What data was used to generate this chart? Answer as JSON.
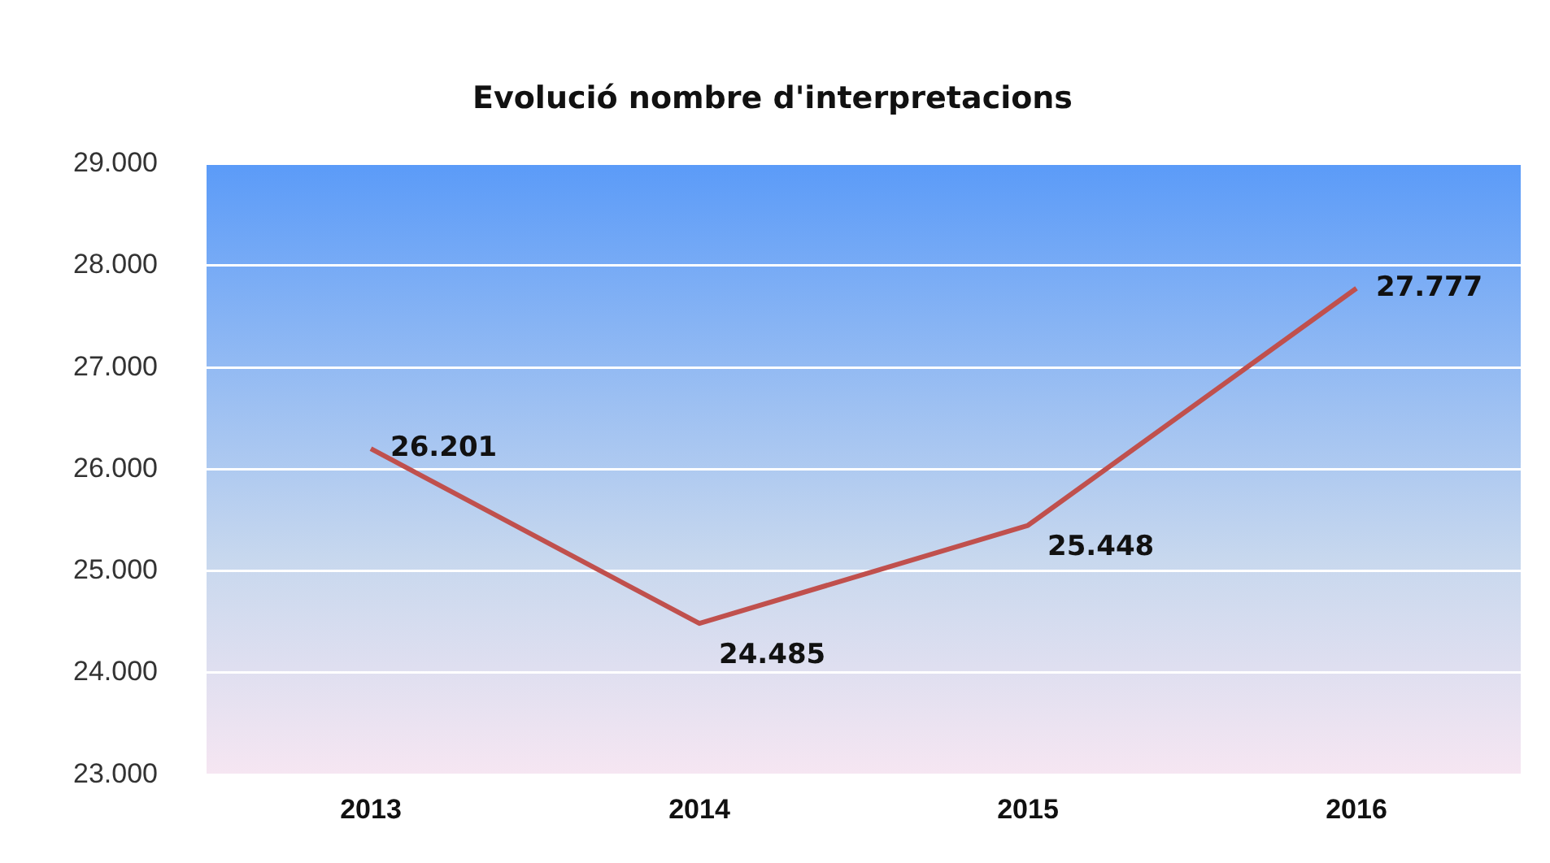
{
  "chart_data": {
    "type": "line",
    "title": "Evolució nombre d'interpretacions",
    "categories": [
      "2013",
      "2014",
      "2015",
      "2016"
    ],
    "series": [
      {
        "color": "#c0504d",
        "values": [
          26201,
          24485,
          25448,
          27777
        ],
        "value_labels": [
          "26.201",
          "24.485",
          "25.448",
          "27.777"
        ]
      }
    ],
    "ylim": [
      23000,
      29000
    ],
    "yticks": [
      {
        "value": 23000,
        "label": "23.000"
      },
      {
        "value": 24000,
        "label": "24.000"
      },
      {
        "value": 25000,
        "label": "25.000"
      },
      {
        "value": 26000,
        "label": "26.000"
      },
      {
        "value": 27000,
        "label": "27.000"
      },
      {
        "value": 28000,
        "label": "28.000"
      },
      {
        "value": 29000,
        "label": "29.000"
      }
    ],
    "grid": "y",
    "legend": false,
    "marker": "none",
    "line_style": "solid"
  }
}
